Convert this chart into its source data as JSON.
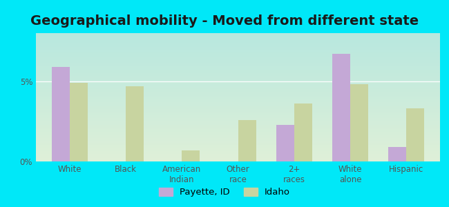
{
  "title": "Geographical mobility - Moved from different state",
  "categories": [
    "White",
    "Black",
    "American\nIndian",
    "Other\nrace",
    "2+\nraces",
    "White\nalone",
    "Hispanic"
  ],
  "payette_values": [
    5.9,
    0.0,
    0.0,
    0.0,
    2.3,
    6.7,
    0.9
  ],
  "idaho_values": [
    4.9,
    4.7,
    0.7,
    2.6,
    3.6,
    4.8,
    3.3
  ],
  "payette_color": "#c4a8d6",
  "idaho_color": "#c8d4a0",
  "outer_bg": "#00e8f8",
  "bg_colors": [
    "#b8e8df",
    "#dff0d8"
  ],
  "ylim": [
    0,
    8
  ],
  "legend_labels": [
    "Payette, ID",
    "Idaho"
  ],
  "title_fontsize": 14,
  "axis_fontsize": 8.5,
  "legend_fontsize": 9.5,
  "bar_width": 0.32
}
